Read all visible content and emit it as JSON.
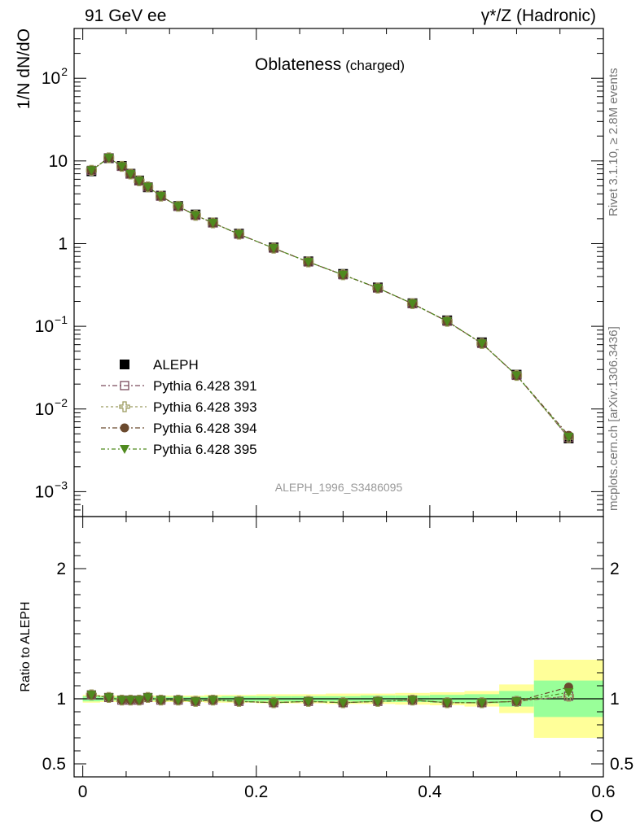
{
  "header": {
    "left": "91 GeV ee",
    "right": "γ*/Z (Hadronic)"
  },
  "side_labels": {
    "rivet": "Rivet 3.1.10, ≥ 2.8M events",
    "mcplots": "mcplots.cern.ch [arXiv:1306.3436]"
  },
  "chart_data": [
    {
      "type": "scatter",
      "title": "Oblateness",
      "subtitle": "(charged)",
      "ylabel": "1/N dN/dO",
      "watermark": "ALEPH_1996_S3486095",
      "log_y": true,
      "xlim": [
        -0.01,
        0.6
      ],
      "ylim": [
        0.0005,
        400
      ],
      "y_ticks": [
        {
          "v": 0.001,
          "base": "10",
          "exp": "−3"
        },
        {
          "v": 0.01,
          "base": "10",
          "exp": "−2"
        },
        {
          "v": 0.1,
          "base": "10",
          "exp": "−1"
        },
        {
          "v": 1,
          "base": "1",
          "exp": ""
        },
        {
          "v": 10,
          "base": "10",
          "exp": ""
        },
        {
          "v": 100,
          "base": "10",
          "exp": "2"
        }
      ],
      "legend_position": "lower-left",
      "x": [
        0.01,
        0.03,
        0.045,
        0.055,
        0.065,
        0.075,
        0.09,
        0.11,
        0.13,
        0.15,
        0.18,
        0.22,
        0.26,
        0.3,
        0.34,
        0.38,
        0.42,
        0.46,
        0.5,
        0.56
      ],
      "series": [
        {
          "name": "ALEPH",
          "color": "#000000",
          "marker": "filled-square",
          "values": [
            7.5,
            10.8,
            8.7,
            7.0,
            5.8,
            4.8,
            3.8,
            2.85,
            2.25,
            1.8,
            1.32,
            0.9,
            0.61,
            0.43,
            0.295,
            0.19,
            0.118,
            0.064,
            0.026,
            0.0044
          ]
        },
        {
          "name": "Pythia 6.428 391",
          "color": "#7a4a5c",
          "marker": "open-square",
          "values": [
            7.7,
            10.9,
            8.6,
            6.95,
            5.75,
            4.85,
            3.75,
            2.83,
            2.2,
            1.78,
            1.3,
            0.88,
            0.6,
            0.42,
            0.29,
            0.188,
            0.115,
            0.062,
            0.0255,
            0.0045
          ]
        },
        {
          "name": "Pythia 6.428 393",
          "color": "#9b9a5e",
          "marker": "open-cross",
          "values": [
            7.7,
            10.9,
            8.6,
            6.95,
            5.75,
            4.85,
            3.75,
            2.83,
            2.2,
            1.78,
            1.3,
            0.88,
            0.6,
            0.42,
            0.29,
            0.188,
            0.115,
            0.062,
            0.0255,
            0.0045
          ]
        },
        {
          "name": "Pythia 6.428 394",
          "color": "#6b4a2e",
          "marker": "filled-circle",
          "values": [
            7.7,
            10.9,
            8.6,
            6.95,
            5.75,
            4.85,
            3.75,
            2.83,
            2.2,
            1.78,
            1.3,
            0.88,
            0.6,
            0.42,
            0.29,
            0.188,
            0.115,
            0.062,
            0.0255,
            0.0048
          ]
        },
        {
          "name": "Pythia 6.428 395",
          "color": "#4f8a1e",
          "marker": "filled-triangle-down",
          "values": [
            7.7,
            10.9,
            8.6,
            6.95,
            5.75,
            4.85,
            3.75,
            2.83,
            2.2,
            1.78,
            1.3,
            0.88,
            0.6,
            0.42,
            0.29,
            0.188,
            0.115,
            0.062,
            0.0255,
            0.0046
          ]
        }
      ]
    },
    {
      "type": "scatter",
      "ylabel": "Ratio to ALEPH",
      "xlabel": "O",
      "xlim": [
        -0.01,
        0.6
      ],
      "ylim": [
        0.4,
        2.4
      ],
      "x_ticks": [
        "0",
        "0.2",
        "0.4",
        "0.6"
      ],
      "y_ticks": [
        "0.5",
        "1",
        "2"
      ],
      "reference_line": 1,
      "bands": [
        {
          "x0": 0.0,
          "x1": 0.02,
          "stat": 0.02,
          "total": 0.03
        },
        {
          "x0": 0.02,
          "x1": 0.04,
          "stat": 0.015,
          "total": 0.025
        },
        {
          "x0": 0.04,
          "x1": 0.05,
          "stat": 0.015,
          "total": 0.025
        },
        {
          "x0": 0.05,
          "x1": 0.06,
          "stat": 0.015,
          "total": 0.025
        },
        {
          "x0": 0.06,
          "x1": 0.07,
          "stat": 0.015,
          "total": 0.025
        },
        {
          "x0": 0.07,
          "x1": 0.08,
          "stat": 0.015,
          "total": 0.025
        },
        {
          "x0": 0.08,
          "x1": 0.1,
          "stat": 0.015,
          "total": 0.025
        },
        {
          "x0": 0.1,
          "x1": 0.12,
          "stat": 0.015,
          "total": 0.025
        },
        {
          "x0": 0.12,
          "x1": 0.14,
          "stat": 0.015,
          "total": 0.025
        },
        {
          "x0": 0.14,
          "x1": 0.16,
          "stat": 0.015,
          "total": 0.03
        },
        {
          "x0": 0.16,
          "x1": 0.2,
          "stat": 0.02,
          "total": 0.03
        },
        {
          "x0": 0.2,
          "x1": 0.24,
          "stat": 0.02,
          "total": 0.035
        },
        {
          "x0": 0.24,
          "x1": 0.28,
          "stat": 0.02,
          "total": 0.035
        },
        {
          "x0": 0.28,
          "x1": 0.32,
          "stat": 0.02,
          "total": 0.04
        },
        {
          "x0": 0.32,
          "x1": 0.36,
          "stat": 0.025,
          "total": 0.04
        },
        {
          "x0": 0.36,
          "x1": 0.4,
          "stat": 0.025,
          "total": 0.045
        },
        {
          "x0": 0.4,
          "x1": 0.44,
          "stat": 0.03,
          "total": 0.05
        },
        {
          "x0": 0.44,
          "x1": 0.48,
          "stat": 0.035,
          "total": 0.06
        },
        {
          "x0": 0.48,
          "x1": 0.52,
          "stat": 0.06,
          "total": 0.11
        },
        {
          "x0": 0.52,
          "x1": 0.6,
          "stat": 0.14,
          "total": 0.3
        }
      ],
      "series": [
        {
          "name": "Pythia 6.428 391",
          "values": [
            1.03,
            1.01,
            0.99,
            0.99,
            0.99,
            1.01,
            0.99,
            0.99,
            0.98,
            0.99,
            0.98,
            0.97,
            0.98,
            0.97,
            0.98,
            0.99,
            0.97,
            0.97,
            0.98,
            1.02
          ]
        },
        {
          "name": "Pythia 6.428 393",
          "values": [
            1.03,
            1.01,
            0.99,
            0.99,
            0.99,
            1.01,
            0.99,
            0.99,
            0.98,
            0.99,
            0.98,
            0.97,
            0.98,
            0.97,
            0.98,
            0.99,
            0.97,
            0.97,
            0.98,
            1.02
          ]
        },
        {
          "name": "Pythia 6.428 394",
          "values": [
            1.03,
            1.01,
            0.99,
            0.99,
            0.99,
            1.01,
            0.99,
            0.99,
            0.98,
            0.99,
            0.98,
            0.97,
            0.98,
            0.97,
            0.98,
            0.99,
            0.97,
            0.97,
            0.98,
            1.09
          ]
        },
        {
          "name": "Pythia 6.428 395",
          "values": [
            1.03,
            1.01,
            0.99,
            0.99,
            0.99,
            1.01,
            0.99,
            0.99,
            0.98,
            0.99,
            0.98,
            0.97,
            0.98,
            0.97,
            0.98,
            0.99,
            0.97,
            0.97,
            0.98,
            1.05
          ]
        }
      ]
    }
  ]
}
